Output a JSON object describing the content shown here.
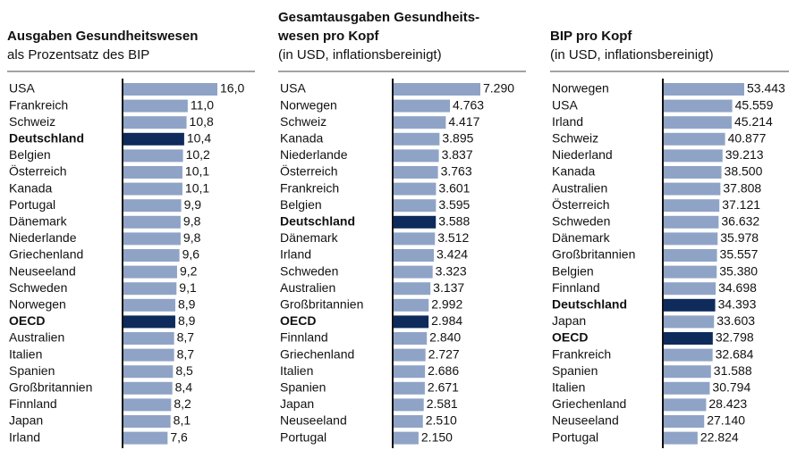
{
  "chart_data": [
    {
      "type": "bar",
      "orientation": "horizontal",
      "title": [
        "Ausgaben Gesundheitswesen"
      ],
      "subtitle": "als Prozentsatz des BIP",
      "categories": [
        "USA",
        "Frankreich",
        "Schweiz",
        "Deutschland",
        "Belgien",
        "Österreich",
        "Kanada",
        "Portugal",
        "Dänemark",
        "Niederlande",
        "Griechenland",
        "Neuseeland",
        "Schweden",
        "Norwegen",
        "OECD",
        "Australien",
        "Italien",
        "Spanien",
        "Großbritannien",
        "Finnland",
        "Japan",
        "Irland"
      ],
      "values": [
        16.0,
        11.0,
        10.8,
        10.4,
        10.2,
        10.1,
        10.1,
        9.9,
        9.8,
        9.8,
        9.6,
        9.2,
        9.1,
        8.9,
        8.9,
        8.7,
        8.7,
        8.5,
        8.4,
        8.2,
        8.1,
        7.6
      ],
      "value_labels": [
        "16,0",
        "11,0",
        "10,8",
        "10,4",
        "10,2",
        "10,1",
        "10,1",
        "9,9",
        "9,8",
        "9,8",
        "9,6",
        "9,2",
        "9,1",
        "8,9",
        "8,9",
        "8,7",
        "8,7",
        "8,5",
        "8,4",
        "8,2",
        "8,1",
        "7,6"
      ],
      "color": "#8fa3c7",
      "highlight_color": "#0e2b5c",
      "highlight_indices": [
        3,
        14
      ],
      "xlim": [
        0,
        16
      ]
    },
    {
      "type": "bar",
      "orientation": "horizontal",
      "title": [
        "Gesamtausgaben Gesundheits-",
        "wesen pro Kopf"
      ],
      "subtitle": "(in USD, inflationsbereinigt)",
      "categories": [
        "USA",
        "Norwegen",
        "Schweiz",
        "Kanada",
        "Niederlande",
        "Österreich",
        "Frankreich",
        "Belgien",
        "Deutschland",
        "Dänemark",
        "Irland",
        "Schweden",
        "Australien",
        "Großbritannien",
        "OECD",
        "Finnland",
        "Griechenland",
        "Italien",
        "Spanien",
        "Japan",
        "Neuseeland",
        "Portugal"
      ],
      "values": [
        7290,
        4763,
        4417,
        3895,
        3837,
        3763,
        3601,
        3595,
        3588,
        3512,
        3424,
        3323,
        3137,
        2992,
        2984,
        2840,
        2727,
        2686,
        2671,
        2581,
        2510,
        2150
      ],
      "value_labels": [
        "7.290",
        "4.763",
        "4.417",
        "3.895",
        "3.837",
        "3.763",
        "3.601",
        "3.595",
        "3.588",
        "3.512",
        "3.424",
        "3.323",
        "3.137",
        "2.992",
        "2.984",
        "2.840",
        "2.727",
        "2.686",
        "2.671",
        "2.581",
        "2.510",
        "2.150"
      ],
      "color": "#8fa3c7",
      "highlight_color": "#0e2b5c",
      "highlight_indices": [
        8,
        14
      ],
      "xlim": [
        0,
        7290
      ]
    },
    {
      "type": "bar",
      "orientation": "horizontal",
      "title": [
        "BIP pro Kopf"
      ],
      "subtitle": "(in USD, inflationsbereinigt)",
      "categories": [
        "Norwegen",
        "USA",
        "Irland",
        "Schweiz",
        "Niederland",
        "Kanada",
        "Australien",
        "Österreich",
        "Schweden",
        "Dänemark",
        "Großbritannien",
        "Belgien",
        "Finnland",
        "Deutschland",
        "Japan",
        "OECD",
        "Frankreich",
        "Spanien",
        "Italien",
        "Griechenland",
        "Neuseeland",
        "Portugal"
      ],
      "values": [
        53443,
        45559,
        45214,
        40877,
        39213,
        38500,
        37808,
        37121,
        36632,
        35978,
        35557,
        35380,
        34698,
        34393,
        33603,
        32798,
        32684,
        31588,
        30794,
        28423,
        27140,
        22824
      ],
      "value_labels": [
        "53.443",
        "45.559",
        "45.214",
        "40.877",
        "39.213",
        "38.500",
        "37.808",
        "37.121",
        "36.632",
        "35.978",
        "35.557",
        "35.380",
        "34.698",
        "34.393",
        "33.603",
        "32.798",
        "32.684",
        "31.588",
        "30.794",
        "28.423",
        "27.140",
        "22.824"
      ],
      "color": "#8fa3c7",
      "highlight_color": "#0e2b5c",
      "highlight_indices": [
        13,
        15
      ],
      "xlim": [
        0,
        53443
      ]
    }
  ]
}
